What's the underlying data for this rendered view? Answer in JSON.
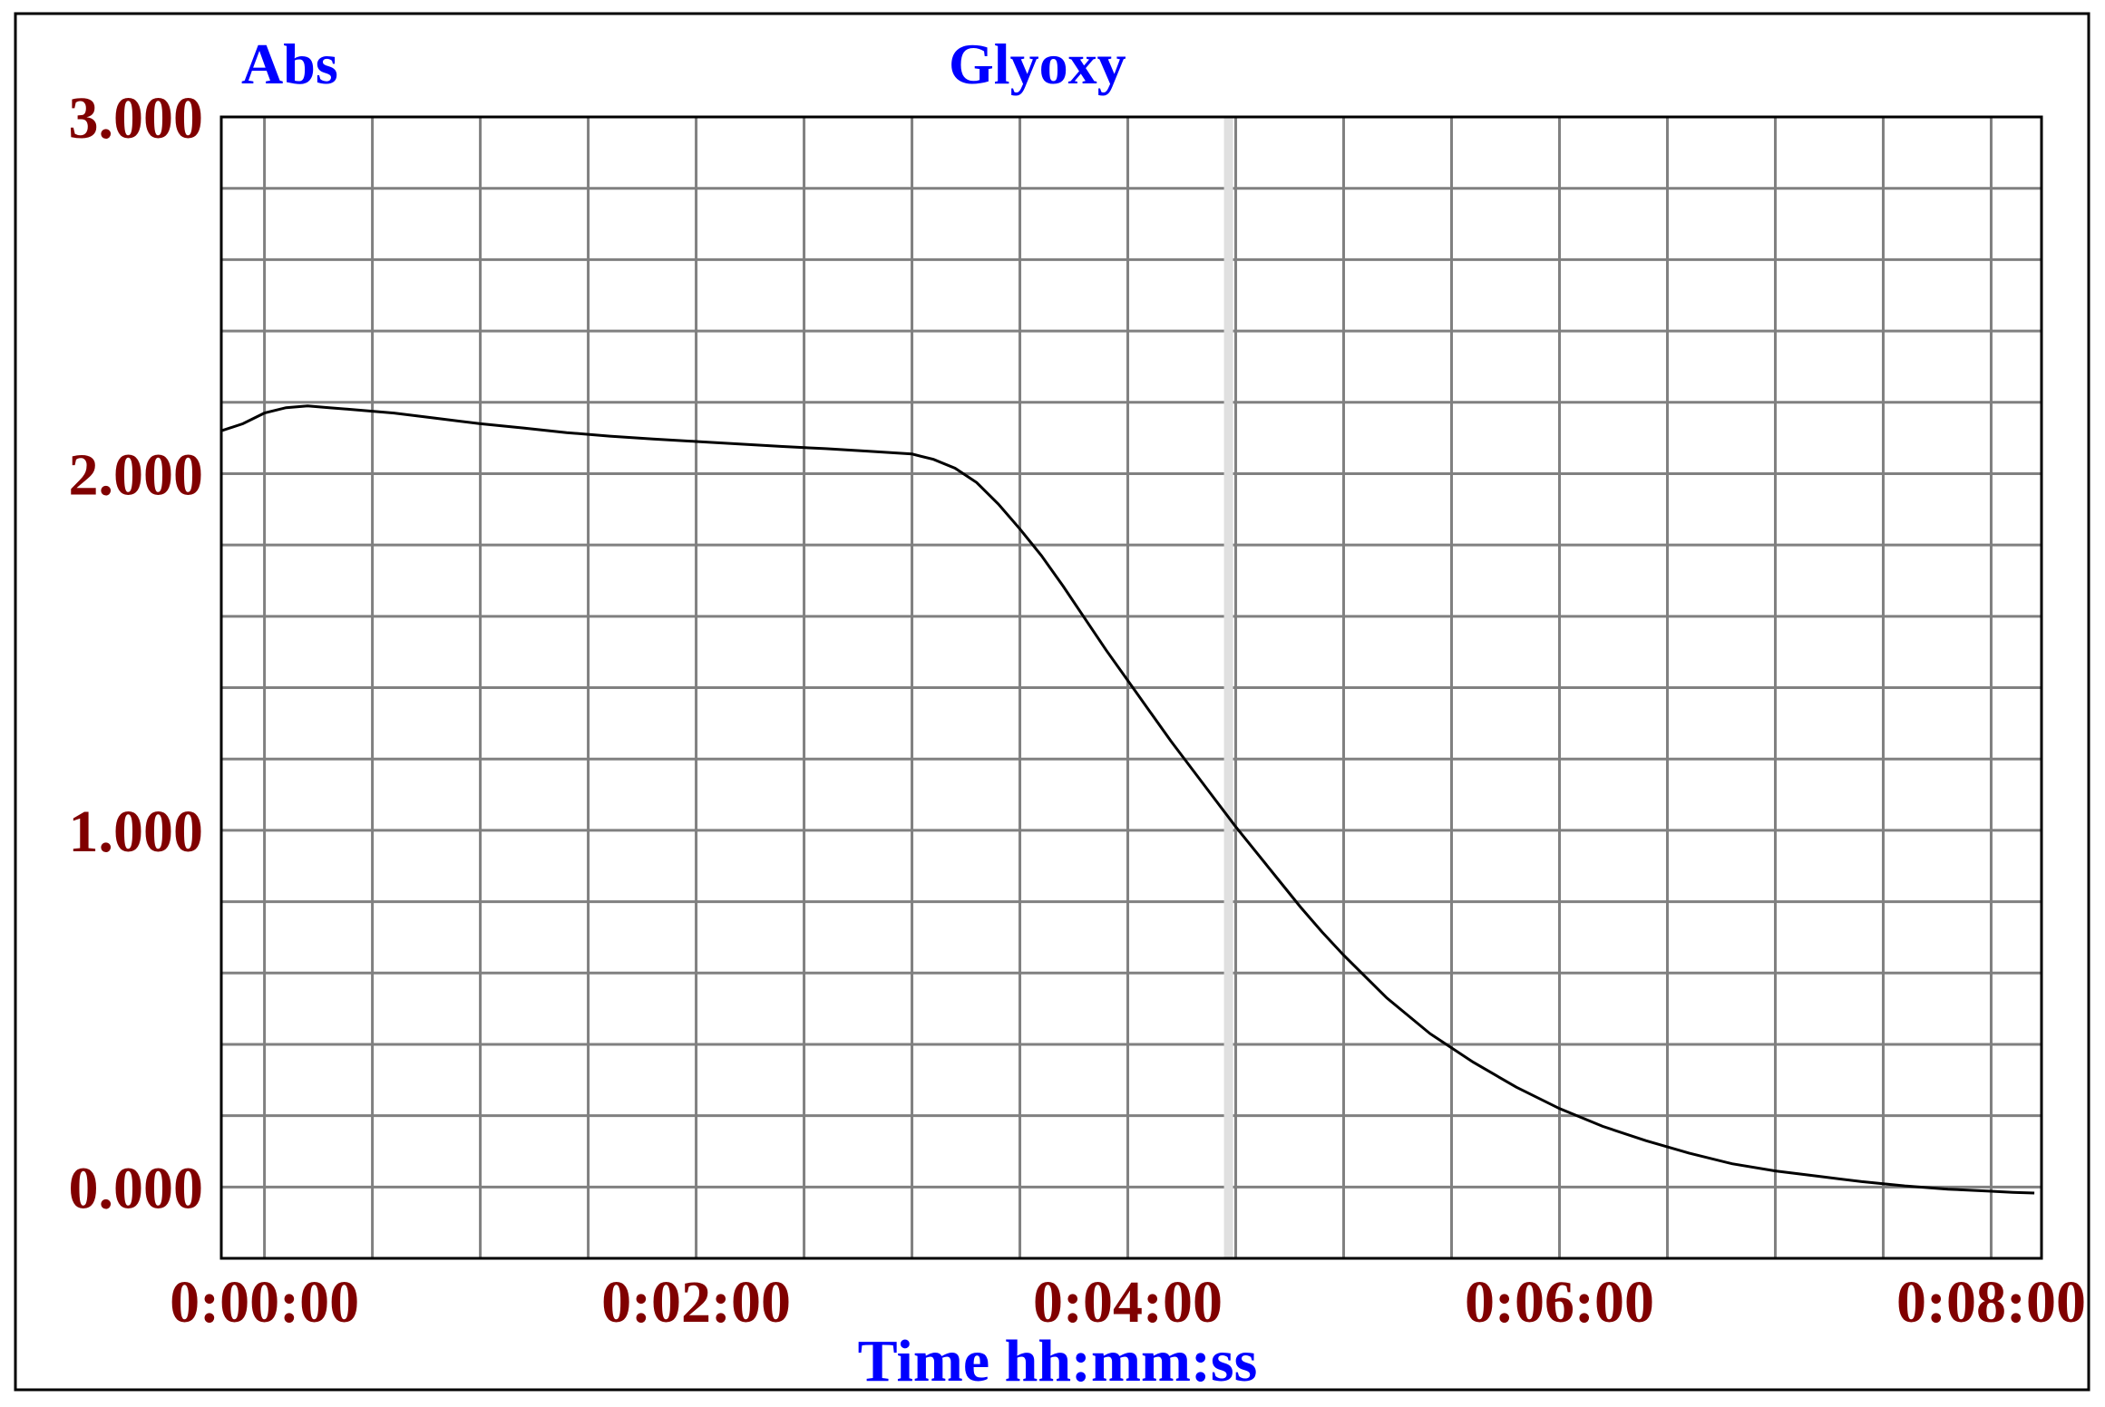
{
  "chart_data": {
    "type": "line",
    "title": "Glyoxy",
    "ylabel": "Abs",
    "xlabel": "Time hh:mm:ss",
    "x_tick_labels": [
      "0:00:00",
      "0:02:00",
      "0:04:00",
      "0:06:00",
      "0:08:00"
    ],
    "y_tick_labels": [
      "0.000",
      "1.000",
      "2.000",
      "3.000"
    ],
    "x_ticks_seconds": [
      0,
      120,
      240,
      360,
      480
    ],
    "y_ticks": [
      0,
      1,
      2,
      3
    ],
    "xlim_seconds": [
      -12,
      494
    ],
    "ylim": [
      -0.2,
      3.0
    ],
    "grid": true,
    "grid_x_step_seconds": 30,
    "grid_y_step": 0.2,
    "marker_x_seconds": 268,
    "series": [
      {
        "x": [
          -12,
          -6,
          0,
          6,
          12,
          18,
          24,
          36,
          48,
          60,
          72,
          84,
          96,
          108,
          120,
          132,
          144,
          156,
          168,
          180,
          186,
          192,
          198,
          204,
          210,
          216,
          222,
          228,
          234,
          240,
          246,
          252,
          258,
          264,
          270,
          276,
          282,
          288,
          294,
          300,
          312,
          324,
          336,
          348,
          360,
          372,
          384,
          396,
          408,
          420,
          432,
          444,
          456,
          468,
          480,
          486,
          492
        ],
        "y": [
          2.12,
          2.14,
          2.17,
          2.185,
          2.19,
          2.185,
          2.18,
          2.17,
          2.155,
          2.14,
          2.128,
          2.115,
          2.105,
          2.097,
          2.09,
          2.083,
          2.076,
          2.07,
          2.063,
          2.055,
          2.04,
          2.015,
          1.975,
          1.915,
          1.845,
          1.77,
          1.685,
          1.595,
          1.505,
          1.42,
          1.335,
          1.25,
          1.17,
          1.09,
          1.01,
          0.935,
          0.86,
          0.785,
          0.715,
          0.65,
          0.53,
          0.43,
          0.35,
          0.28,
          0.22,
          0.17,
          0.13,
          0.095,
          0.065,
          0.045,
          0.03,
          0.015,
          0.003,
          -0.006,
          -0.012,
          -0.015,
          -0.017
        ]
      }
    ]
  },
  "colors": {
    "axis_label": "#0000ff",
    "tick_label": "#800000",
    "grid": "#808080",
    "marker": "#e0e0e0",
    "line": "#000000",
    "frame": "#000000"
  }
}
